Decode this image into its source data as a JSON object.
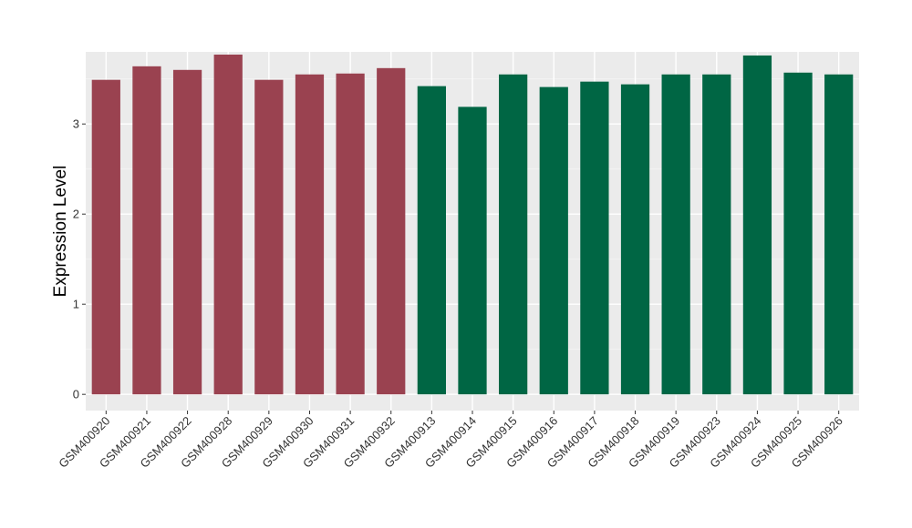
{
  "chart_data": {
    "type": "bar",
    "title": "",
    "xlabel": "",
    "ylabel": "Expression Level",
    "ylim": [
      -0.18,
      3.8
    ],
    "y_ticks": [
      0,
      1,
      2,
      3
    ],
    "grid": true,
    "panel_background": "#ebebeb",
    "categories": [
      "GSM400920",
      "GSM400921",
      "GSM400922",
      "GSM400928",
      "GSM400929",
      "GSM400930",
      "GSM400931",
      "GSM400932",
      "GSM400913",
      "GSM400914",
      "GSM400915",
      "GSM400916",
      "GSM400917",
      "GSM400918",
      "GSM400919",
      "GSM400923",
      "GSM400924",
      "GSM400925",
      "GSM400926"
    ],
    "values": [
      3.49,
      3.64,
      3.6,
      3.77,
      3.49,
      3.55,
      3.56,
      3.62,
      3.42,
      3.19,
      3.55,
      3.41,
      3.47,
      3.44,
      3.55,
      3.55,
      3.76,
      3.57,
      3.55
    ],
    "bar_colors": [
      "#9a4250",
      "#9a4250",
      "#9a4250",
      "#9a4250",
      "#9a4250",
      "#9a4250",
      "#9a4250",
      "#9a4250",
      "#006644",
      "#006644",
      "#006644",
      "#006644",
      "#006644",
      "#006644",
      "#006644",
      "#006644",
      "#006644",
      "#006644",
      "#006644"
    ]
  }
}
